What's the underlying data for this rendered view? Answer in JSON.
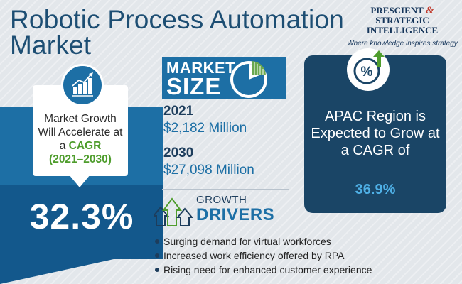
{
  "title": "Robotic Process Automation Market",
  "logo": {
    "line1": "PRESCIENT",
    "ampersand": "&",
    "line1b": "STRATEGIC",
    "line2": "INTELLIGENCE",
    "tagline": "Where knowledge inspires strategy"
  },
  "growth": {
    "text_before": "Market Growth Will Accelerate at a",
    "cagr_word": "CAGR",
    "years": "(2021–2030)",
    "value": "32.3%",
    "icon": "growth-chart-icon"
  },
  "market_size": {
    "heading_top": "MARKET",
    "heading_bottom": "SIZE",
    "icon": "pie-chart-icon",
    "entries": [
      {
        "year": "2021",
        "value": "$2,182 Million"
      },
      {
        "year": "2030",
        "value": "$27,098 Million"
      }
    ]
  },
  "drivers": {
    "heading_top": "GROWTH",
    "heading_bottom": "DRIVERS",
    "icon": "up-arrows-icon",
    "items": [
      "Surging demand for virtual workforces",
      "Increased work efficiency offered by RPA",
      "Rising need for enhanced customer experience"
    ]
  },
  "apac": {
    "icon": "percent-up-icon",
    "text": "APAC Region is Expected to Grow at a CAGR of",
    "value": "36.9%"
  },
  "colors": {
    "primary_blue": "#1d6fa5",
    "dark_navy": "#1a4566",
    "accent_green": "#4f9d2d",
    "accent_light_blue": "#4fb0e6"
  }
}
